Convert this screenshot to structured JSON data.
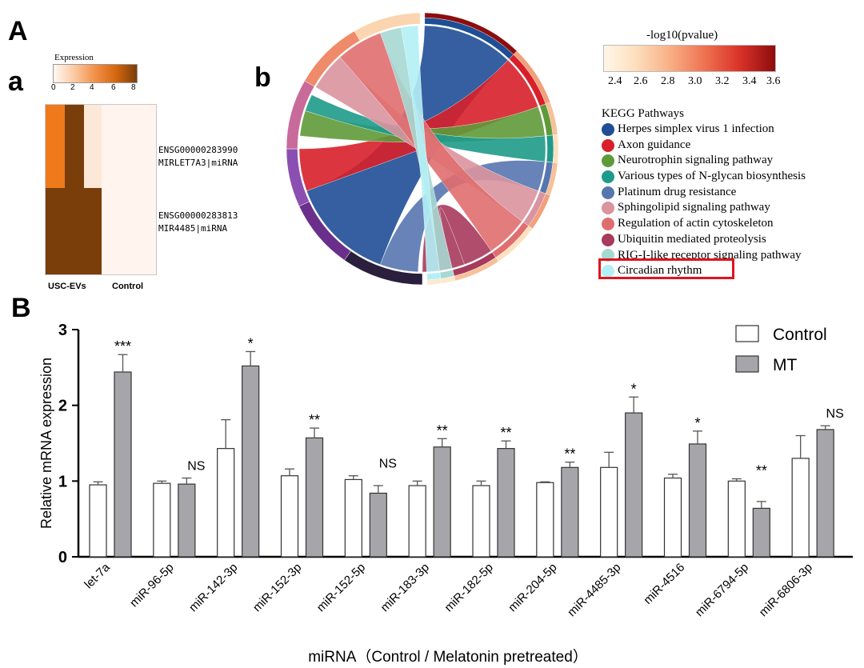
{
  "panel_labels": {
    "A": "A",
    "a": "a",
    "b": "b",
    "B": "B"
  },
  "heatmap": {
    "legend_title": "Expression",
    "legend_ticks": [
      "0",
      "2",
      "4",
      "6",
      "8"
    ],
    "rows": [
      {
        "id": "ENSG00000283990",
        "name": "MIRLET7A3|miRNA"
      },
      {
        "id": "ENSG00000283813",
        "name": "MIR4485|miRNA"
      }
    ],
    "group_labels": [
      "USC-EVs",
      "Control"
    ],
    "cells": [
      [
        "#ee7a1c",
        "#7a3e0a",
        "#fde8d8",
        "#fff5ee",
        "#fff5ee",
        "#fff5ee"
      ],
      [
        "#7a3e0a",
        "#7a3e0a",
        "#7a3e0a",
        "#fff5ee",
        "#fff5ee",
        "#fff5ee"
      ]
    ]
  },
  "chord": {
    "colorbar_title": "-log10(pvalue)",
    "colorbar_ticks": [
      "2.4",
      "2.6",
      "2.8",
      "3.0",
      "3.2",
      "3.4",
      "3.6"
    ],
    "legend_title": "KEGG Pathways",
    "pathways": [
      {
        "name": "Herpes simplex virus 1 infection",
        "color": "#1f4e96"
      },
      {
        "name": "Axon guidance",
        "color": "#d7202a"
      },
      {
        "name": "Neurotrophin signaling pathway",
        "color": "#5f9a3a"
      },
      {
        "name": "Various types of N-glycan biosynthesis",
        "color": "#1e9a8a"
      },
      {
        "name": "Platinum drug resistance",
        "color": "#5676b0"
      },
      {
        "name": "Sphingolipid signaling pathway",
        "color": "#d9949f"
      },
      {
        "name": "Regulation of actin cytoskeleton",
        "color": "#e06e6e"
      },
      {
        "name": "Ubiquitin mediated proteolysis",
        "color": "#a83a5c"
      },
      {
        "name": "RIG-I-like receptor signaling pathway",
        "color": "#a6d8d2"
      },
      {
        "name": "Circadian rhythm",
        "color": "#b3f0f5"
      }
    ],
    "highlight_color": "#e0141e"
  },
  "chart_data": {
    "type": "bar",
    "xlabel": "miRNA（Control / Melatonin pretreated）",
    "ylabel": "Relative mRNA expression",
    "ylim": [
      0,
      3
    ],
    "yticks": [
      "0",
      "1",
      "2",
      "3"
    ],
    "legend": "top-right",
    "categories": [
      "let-7a",
      "miR-96-5p",
      "miR-142-3p",
      "miR-152-3p",
      "miR-152-5p",
      "miR-183-3p",
      "miR-182-5p",
      "miR-204-5p",
      "miR-4485-3p",
      "miR-4516",
      "miR-6794-5p",
      "miR-6806-3p"
    ],
    "series": [
      {
        "name": "Control",
        "color": "#ffffff",
        "values": [
          0.95,
          0.97,
          1.43,
          1.07,
          1.02,
          0.94,
          0.94,
          0.98,
          1.18,
          1.04,
          1.0,
          1.3
        ],
        "errors": [
          0.04,
          0.03,
          0.38,
          0.09,
          0.05,
          0.06,
          0.06,
          0.01,
          0.2,
          0.05,
          0.03,
          0.3
        ]
      },
      {
        "name": "MT",
        "color": "#a6a6aa",
        "values": [
          2.44,
          0.96,
          2.52,
          1.57,
          0.84,
          1.45,
          1.43,
          1.18,
          1.9,
          1.49,
          0.64,
          1.68
        ],
        "errors": [
          0.23,
          0.08,
          0.19,
          0.13,
          0.1,
          0.11,
          0.1,
          0.07,
          0.21,
          0.17,
          0.09,
          0.05
        ]
      }
    ],
    "significance": [
      "***",
      "NS",
      "*",
      "**",
      "NS",
      "**",
      "**",
      "**",
      "*",
      "*",
      "**",
      "NS"
    ]
  }
}
